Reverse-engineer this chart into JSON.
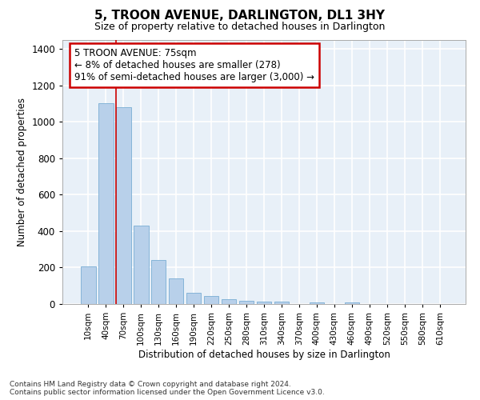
{
  "title": "5, TROON AVENUE, DARLINGTON, DL1 3HY",
  "subtitle": "Size of property relative to detached houses in Darlington",
  "xlabel": "Distribution of detached houses by size in Darlington",
  "ylabel": "Number of detached properties",
  "bar_color": "#b8d0ea",
  "bar_edge_color": "#7aadd4",
  "background_color": "#e8f0f8",
  "grid_color": "#ffffff",
  "categories": [
    "10sqm",
    "40sqm",
    "70sqm",
    "100sqm",
    "130sqm",
    "160sqm",
    "190sqm",
    "220sqm",
    "250sqm",
    "280sqm",
    "310sqm",
    "340sqm",
    "370sqm",
    "400sqm",
    "430sqm",
    "460sqm",
    "490sqm",
    "520sqm",
    "550sqm",
    "580sqm",
    "610sqm"
  ],
  "values": [
    205,
    1105,
    1080,
    430,
    240,
    140,
    60,
    45,
    25,
    18,
    15,
    12,
    0,
    10,
    0,
    10,
    0,
    0,
    0,
    0,
    0
  ],
  "property_line_color": "#cc0000",
  "annotation_text_line1": "5 TROON AVENUE: 75sqm",
  "annotation_text_line2": "← 8% of detached houses are smaller (278)",
  "annotation_text_line3": "91% of semi-detached houses are larger (3,000) →",
  "annotation_box_facecolor": "#ffffff",
  "annotation_box_edgecolor": "#cc0000",
  "ylim": [
    0,
    1450
  ],
  "yticks": [
    0,
    200,
    400,
    600,
    800,
    1000,
    1200,
    1400
  ],
  "footer_line1": "Contains HM Land Registry data © Crown copyright and database right 2024.",
  "footer_line2": "Contains public sector information licensed under the Open Government Licence v3.0.",
  "fig_facecolor": "#ffffff"
}
